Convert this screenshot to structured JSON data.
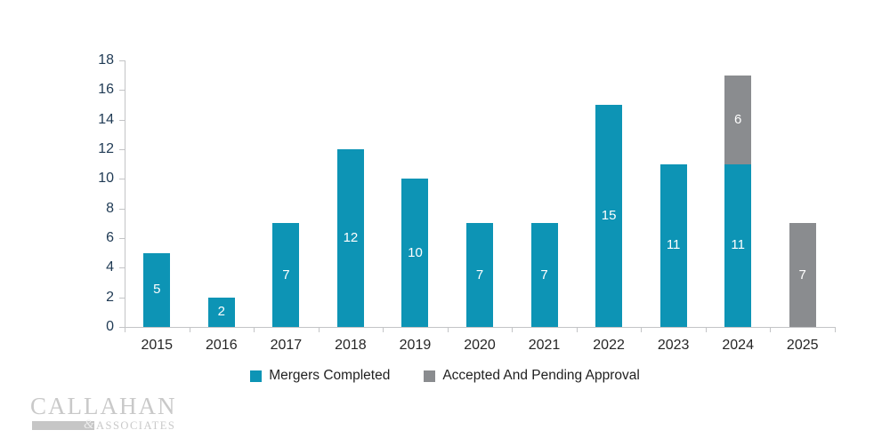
{
  "chart_data": {
    "type": "bar",
    "stacked": true,
    "title": "",
    "xlabel": "",
    "ylabel": "",
    "categories": [
      "2015",
      "2016",
      "2017",
      "2018",
      "2019",
      "2020",
      "2021",
      "2022",
      "2023",
      "2024",
      "2025"
    ],
    "series": [
      {
        "name": "Mergers Completed",
        "color": "#0d94b5",
        "values": [
          5,
          2,
          7,
          12,
          10,
          7,
          7,
          15,
          11,
          11,
          0
        ]
      },
      {
        "name": "Accepted And Pending Approval",
        "color": "#8a8c8f",
        "values": [
          0,
          0,
          0,
          0,
          0,
          0,
          0,
          0,
          0,
          6,
          7
        ]
      }
    ],
    "ylim": [
      0,
      18
    ],
    "ytick_step": 2,
    "yticks": [
      "0",
      "2",
      "4",
      "6",
      "8",
      "10",
      "12",
      "14",
      "16",
      "18"
    ],
    "grid": false,
    "legend_position": "bottom",
    "data_labels": "white numbers centered inside each bar segment"
  },
  "legend": {
    "items": [
      {
        "label": "Mergers Completed",
        "color": "#0d94b5"
      },
      {
        "label": "Accepted And Pending Approval",
        "color": "#8a8c8f"
      }
    ]
  },
  "colors": {
    "teal": "#0d94b5",
    "gray": "#8a8c8f",
    "axis_line": "#c3c4c6",
    "y_tick_label": "#1f3a54",
    "x_tick_label": "#262626",
    "legend_text": "#1f1f1f",
    "bar_label": "#ffffff",
    "logo": "#c9c9c9"
  },
  "branding": {
    "line1": "CALLAHAN",
    "ampersand": "&",
    "line2": "ASSOCIATES"
  }
}
